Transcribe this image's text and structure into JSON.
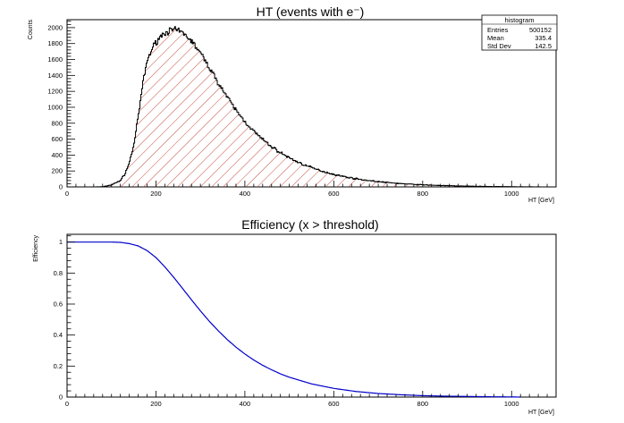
{
  "chart_data": [
    {
      "type": "histogram",
      "title": "HT (events with e⁻)",
      "xlabel": "HT [GeV]",
      "ylabel": "Counts",
      "xlim": [
        0,
        1100
      ],
      "ylim": [
        0,
        2100
      ],
      "x_ticks": [
        0,
        200,
        400,
        600,
        800,
        1000
      ],
      "y_ticks": [
        0,
        200,
        400,
        600,
        800,
        1000,
        1200,
        1400,
        1600,
        1800,
        2000
      ],
      "fill": "red diagonal hatch",
      "line_color": "#000000",
      "stats_box": {
        "title": "histogram",
        "rows": [
          {
            "label": "Entries",
            "value": "500152"
          },
          {
            "label": "Mean",
            "value": "335.4"
          },
          {
            "label": "Std Dev",
            "value": "142.5"
          }
        ]
      },
      "bin_width": 2,
      "series": [
        {
          "x": [
            60,
            80,
            100,
            120,
            130,
            140,
            150,
            160,
            170,
            180,
            190,
            200,
            210,
            220,
            230,
            240,
            250,
            260,
            270,
            280,
            290,
            300,
            310,
            320,
            330,
            340,
            350,
            360,
            370,
            380,
            390,
            400,
            420,
            440,
            460,
            480,
            500,
            520,
            540,
            560,
            580,
            600,
            620,
            640,
            660,
            680,
            700,
            720,
            740,
            760,
            780,
            800,
            820,
            840,
            860,
            880,
            900,
            920,
            940,
            960,
            980,
            1000,
            1020,
            1050,
            1100
          ],
          "values": [
            0,
            2,
            25,
            80,
            160,
            300,
            520,
            870,
            1280,
            1580,
            1720,
            1820,
            1890,
            1935,
            1960,
            1970,
            1960,
            1935,
            1890,
            1830,
            1760,
            1680,
            1590,
            1500,
            1405,
            1310,
            1220,
            1130,
            1045,
            965,
            890,
            820,
            700,
            595,
            505,
            430,
            365,
            310,
            262,
            222,
            188,
            158,
            133,
            112,
            94,
            79,
            66,
            55,
            46,
            38,
            32,
            26,
            22,
            18,
            15,
            12,
            10,
            8,
            6,
            5,
            4,
            3,
            2,
            1,
            0
          ]
        }
      ]
    },
    {
      "type": "line",
      "title": "Efficiency (x > threshold)",
      "xlabel": "HT [GeV]",
      "ylabel": "Efficiency",
      "xlim": [
        0,
        1100
      ],
      "ylim": [
        0,
        1.05
      ],
      "x_ticks": [
        0,
        200,
        400,
        600,
        800,
        1000
      ],
      "y_ticks": [
        0,
        0.2,
        0.4,
        0.6,
        0.8,
        1
      ],
      "y_tick_labels": [
        "0",
        "0.2",
        "0.4",
        "0.6",
        "0.8",
        "1"
      ],
      "line_color": "#0000cc",
      "series": [
        {
          "x": [
            0,
            50,
            100,
            120,
            140,
            160,
            180,
            200,
            220,
            240,
            260,
            280,
            300,
            320,
            340,
            360,
            380,
            400,
            420,
            440,
            460,
            480,
            500,
            550,
            600,
            650,
            700,
            750,
            800,
            850,
            900,
            950,
            1000,
            1020
          ],
          "values": [
            1,
            1,
            1,
            0.998,
            0.99,
            0.975,
            0.945,
            0.9,
            0.84,
            0.772,
            0.7,
            0.627,
            0.556,
            0.489,
            0.428,
            0.372,
            0.322,
            0.278,
            0.239,
            0.205,
            0.176,
            0.15,
            0.128,
            0.085,
            0.056,
            0.036,
            0.023,
            0.015,
            0.009,
            0.006,
            0.004,
            0.002,
            0.001,
            0
          ]
        }
      ]
    }
  ]
}
